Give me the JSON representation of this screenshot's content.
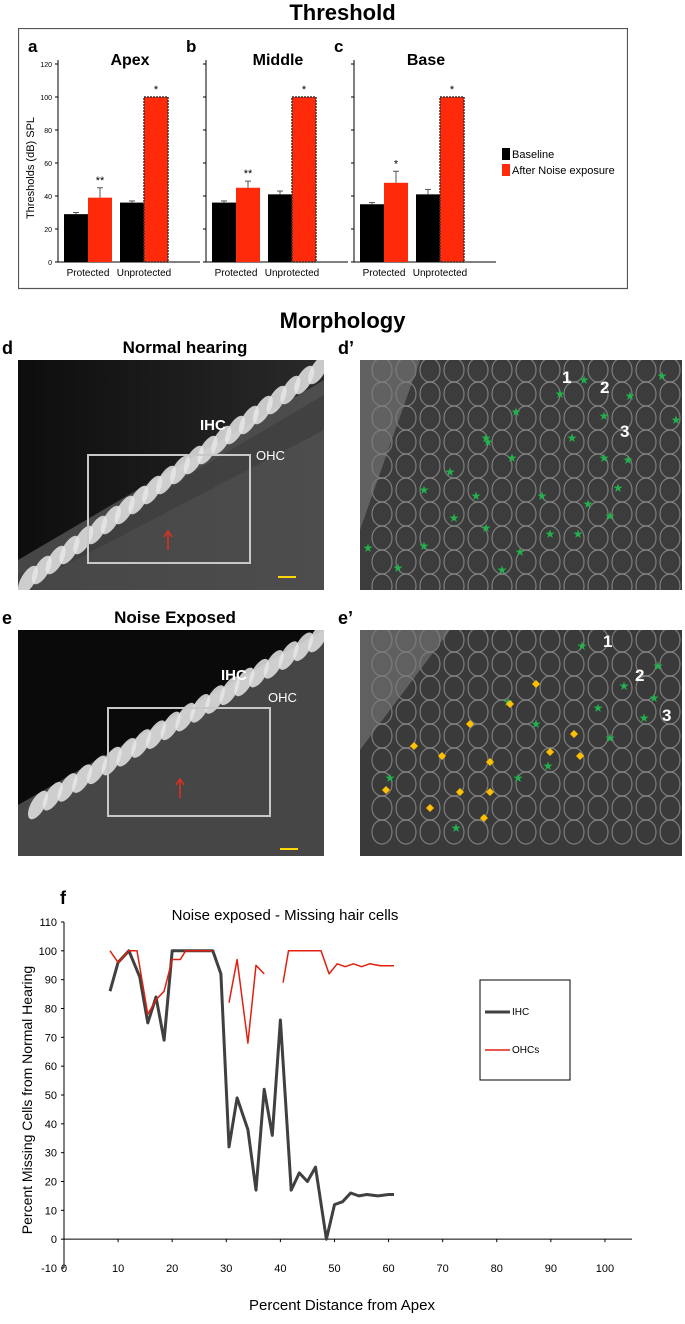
{
  "threshold": {
    "title": "Threshold",
    "ylabel": "Thresholds (dB) SPL",
    "ylim": [
      0,
      120
    ],
    "yticks": [
      "0",
      "20",
      "40",
      "60",
      "80",
      "100",
      "120"
    ],
    "legend": [
      {
        "label": "Baseline",
        "color": "#000000"
      },
      {
        "label": "After Noise exposure",
        "color": "#ff2a0a"
      }
    ],
    "panels": [
      {
        "letter": "a",
        "title": "Apex"
      },
      {
        "letter": "b",
        "title": "Middle"
      },
      {
        "letter": "c",
        "title": "Base"
      }
    ],
    "group_labels": [
      "Protected",
      "Unprotected"
    ]
  },
  "morphology": {
    "title": "Morphology",
    "panels": [
      {
        "letter": "d",
        "title": "Normal hearing",
        "ihc": "IHC",
        "ohc": "OHC"
      },
      {
        "letter": "d’",
        "rows": [
          "1",
          "2",
          "3"
        ]
      },
      {
        "letter": "e",
        "title": "Noise Exposed",
        "ihc": "IHC",
        "ohc": "OHC"
      },
      {
        "letter": "e’",
        "rows": [
          "1",
          "2",
          "3"
        ]
      }
    ],
    "colors": {
      "star": "#22b14c",
      "diamond": "#ffc000",
      "arrow": "#e03020",
      "scalebar": "#ffd700",
      "box": "#c8c8c8"
    }
  },
  "missing": {
    "letter": "f",
    "title": "Noise exposed - Missing hair cells",
    "xlabel": "Percent Distance from Apex",
    "ylabel": "Percent Missing Cells from Normal Hearing",
    "xlim": [
      0,
      105
    ],
    "ylim": [
      -10,
      110
    ],
    "xticks": [
      "0",
      "10",
      "20",
      "30",
      "40",
      "50",
      "60",
      "70",
      "80",
      "90",
      "100"
    ],
    "yticks": [
      "-10",
      "0",
      "10",
      "20",
      "30",
      "40",
      "50",
      "60",
      "70",
      "80",
      "90",
      "100",
      "110"
    ],
    "legend": [
      {
        "label": "IHC",
        "color": "#404040"
      },
      {
        "label": "OHCs",
        "color": "#e02010"
      }
    ]
  },
  "chart_data": [
    {
      "type": "bar",
      "title": "Apex",
      "ylabel": "Thresholds (dB) SPL",
      "ylim": [
        0,
        120
      ],
      "categories": [
        "Protected",
        "Unprotected"
      ],
      "series": [
        {
          "name": "Baseline",
          "values": [
            29,
            36
          ],
          "errors": [
            1,
            1
          ]
        },
        {
          "name": "After Noise exposure",
          "values": [
            39,
            100
          ],
          "errors": [
            6,
            0
          ]
        }
      ],
      "annotations": [
        "**",
        "*"
      ],
      "legend_position": "right"
    },
    {
      "type": "bar",
      "title": "Middle",
      "ylim": [
        0,
        120
      ],
      "categories": [
        "Protected",
        "Unprotected"
      ],
      "series": [
        {
          "name": "Baseline",
          "values": [
            36,
            41
          ],
          "errors": [
            1,
            2
          ]
        },
        {
          "name": "After Noise exposure",
          "values": [
            45,
            100
          ],
          "errors": [
            4,
            0
          ]
        }
      ],
      "annotations": [
        "**",
        "*"
      ]
    },
    {
      "type": "bar",
      "title": "Base",
      "ylim": [
        0,
        120
      ],
      "categories": [
        "Protected",
        "Unprotected"
      ],
      "series": [
        {
          "name": "Baseline",
          "values": [
            35,
            41
          ],
          "errors": [
            1,
            3
          ]
        },
        {
          "name": "After Noise exposure",
          "values": [
            48,
            100
          ],
          "errors": [
            7,
            0
          ]
        }
      ],
      "annotations": [
        "*",
        "*"
      ]
    },
    {
      "type": "line",
      "title": "Noise exposed - Missing hair cells",
      "xlabel": "Percent Distance from Apex",
      "ylabel": "Percent Missing Cells from Normal Hearing",
      "xlim": [
        0,
        105
      ],
      "ylim": [
        -10,
        110
      ],
      "grid": false,
      "legend_position": "right",
      "series": [
        {
          "name": "IHC",
          "points": [
            [
              8.5,
              86
            ],
            [
              10,
              96
            ],
            [
              12,
              100
            ],
            [
              14,
              91
            ],
            [
              15.5,
              75
            ],
            [
              17,
              84
            ],
            [
              18.5,
              69
            ],
            [
              20,
              100
            ],
            [
              22,
              100
            ],
            [
              24,
              100
            ],
            [
              26,
              100
            ],
            [
              27.5,
              100
            ],
            [
              29,
              92
            ],
            [
              30.5,
              32
            ],
            [
              32,
              49
            ],
            [
              34,
              38
            ],
            [
              35.5,
              17
            ],
            [
              37,
              52
            ],
            [
              38.5,
              36
            ],
            [
              40,
              76
            ],
            [
              42,
              17
            ],
            [
              43.5,
              23
            ],
            [
              45,
              20
            ],
            [
              46.5,
              25
            ],
            [
              48.5,
              0
            ],
            [
              50,
              12
            ],
            [
              51.5,
              13
            ],
            [
              53,
              16
            ],
            [
              54.5,
              15
            ],
            [
              56,
              15.5
            ],
            [
              58,
              15
            ],
            [
              60,
              15.5
            ],
            [
              61,
              15.5
            ]
          ]
        },
        {
          "name": "OHCs",
          "points": [
            [
              8.5,
              100
            ],
            [
              10,
              96
            ],
            [
              12,
              100
            ],
            [
              13.5,
              100
            ],
            [
              15.5,
              78
            ],
            [
              17,
              83
            ],
            [
              18.5,
              86
            ],
            [
              20,
              97
            ],
            [
              21.5,
              97
            ],
            [
              22.5,
              100
            ],
            [
              24,
              100
            ],
            [
              25.5,
              100
            ],
            [
              27.5,
              100
            ],
            [
              null,
              null
            ],
            [
              30.5,
              82
            ],
            [
              32,
              97
            ],
            [
              34,
              68
            ],
            [
              35.5,
              95
            ],
            [
              37,
              92
            ],
            [
              null,
              null
            ],
            [
              40.5,
              89
            ],
            [
              41.5,
              100
            ],
            [
              43.5,
              100
            ],
            [
              45.5,
              100
            ],
            [
              47.5,
              100
            ],
            [
              49,
              92
            ],
            [
              50.5,
              95.5
            ],
            [
              52,
              94.5
            ],
            [
              53.5,
              95.5
            ],
            [
              55,
              94.5
            ],
            [
              56.5,
              95.5
            ],
            [
              58.5,
              94.8
            ],
            [
              61,
              94.8
            ]
          ]
        }
      ]
    }
  ]
}
